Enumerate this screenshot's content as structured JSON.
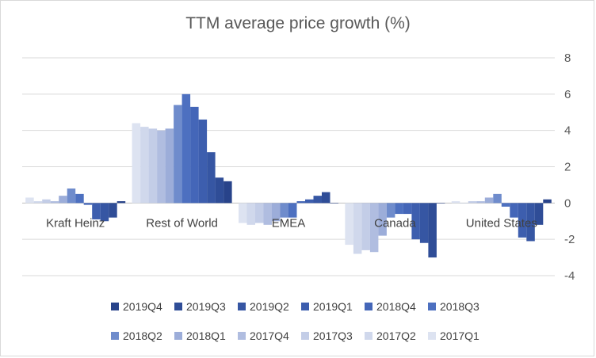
{
  "chart_data": {
    "type": "bar",
    "title": "TTM average price growth (%)",
    "xlabel": "",
    "ylabel": "",
    "ylim": [
      -4,
      8
    ],
    "yticks": [
      8,
      6,
      4,
      2,
      0,
      -2,
      -4
    ],
    "grid": true,
    "legend_position": "bottom",
    "categories": [
      "Kraft Heinz",
      "Rest of World",
      "EMEA",
      "Canada",
      "United States"
    ],
    "series": [
      {
        "name": "2017Q1",
        "color": "#dde3f1",
        "values": [
          0.3,
          4.4,
          -1.1,
          -2.3,
          0.1
        ]
      },
      {
        "name": "2017Q2",
        "color": "#d0d8ec",
        "values": [
          0.1,
          4.2,
          -1.2,
          -2.8,
          0.0
        ]
      },
      {
        "name": "2017Q3",
        "color": "#c3cde7",
        "values": [
          0.2,
          4.1,
          -1.1,
          -2.6,
          0.1
        ]
      },
      {
        "name": "2017Q4",
        "color": "#b0bde0",
        "values": [
          0.1,
          4.0,
          -1.2,
          -2.7,
          0.1
        ]
      },
      {
        "name": "2018Q1",
        "color": "#9cadd9",
        "values": [
          0.4,
          4.1,
          -1.0,
          -1.8,
          0.3
        ]
      },
      {
        "name": "2018Q2",
        "color": "#6f8ccc",
        "values": [
          0.8,
          5.4,
          -0.8,
          -0.8,
          0.5
        ]
      },
      {
        "name": "2018Q3",
        "color": "#4d70c0",
        "values": [
          0.5,
          6.0,
          -0.8,
          -0.6,
          -0.2
        ]
      },
      {
        "name": "2018Q4",
        "color": "#4466b8",
        "values": [
          -0.1,
          5.3,
          0.1,
          -0.6,
          -0.8
        ]
      },
      {
        "name": "2019Q1",
        "color": "#3d5eae",
        "values": [
          -0.9,
          4.6,
          0.2,
          -2.0,
          -1.9
        ]
      },
      {
        "name": "2019Q2",
        "color": "#3656a3",
        "values": [
          -1.0,
          2.8,
          0.4,
          -2.2,
          -2.1
        ]
      },
      {
        "name": "2019Q3",
        "color": "#2f4d97",
        "values": [
          -0.8,
          1.4,
          0.6,
          -3.0,
          -1.2
        ]
      },
      {
        "name": "2019Q4",
        "color": "#28438a",
        "values": [
          0.1,
          1.2,
          0.0,
          0.0,
          0.2
        ]
      }
    ]
  },
  "legend_row1": [
    "2019Q4",
    "2019Q3",
    "2019Q2",
    "2019Q1",
    "2018Q4",
    "2018Q3"
  ],
  "legend_row2": [
    "2018Q2",
    "2018Q1",
    "2017Q4",
    "2017Q3",
    "2017Q2",
    "2017Q1"
  ]
}
